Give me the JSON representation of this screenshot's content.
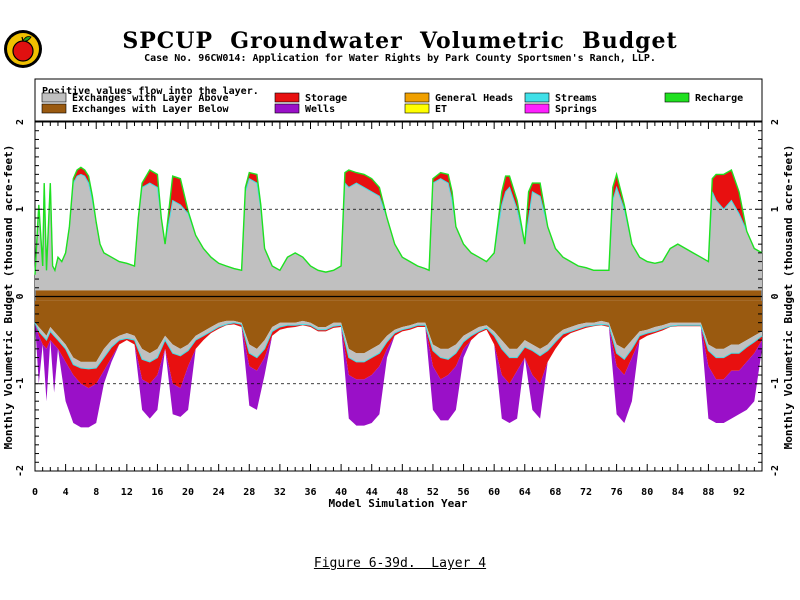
{
  "page": {
    "title": "SPCUP  Groundwater  Volumetric  Budget",
    "subtitle": "Case No. 96CW014: Application for Water Rights by Park County Sportsmen's Ranch, LLP.",
    "caption": "Figure 6-39d.  Layer 4"
  },
  "logo": {
    "icon": "apple-logo-icon",
    "colors": {
      "ring": "#f0c000",
      "apple": "#e01010",
      "leaf": "#20a020"
    }
  },
  "chart_data": {
    "type": "area",
    "title": "SPCUP  Groundwater  Volumetric  Budget",
    "subtitle": "Case No. 96CW014: Application for Water Rights by Park County Sportsmen's Ranch, LLP.",
    "xlabel": "Model Simulation Year",
    "ylabel": "Monthly Volumetric Budget (thousand acre-feet)",
    "xlim": [
      0,
      95
    ],
    "ylim": [
      -2,
      2
    ],
    "x_ticks_major": [
      0,
      4,
      8,
      12,
      16,
      20,
      24,
      28,
      32,
      36,
      40,
      44,
      48,
      52,
      56,
      60,
      64,
      68,
      72,
      76,
      80,
      84,
      88,
      92
    ],
    "x_tick_labels": [
      "0",
      "4",
      "8",
      "12",
      "16",
      "20",
      "24",
      "28",
      "32",
      "36",
      "40",
      "44",
      "48",
      "52",
      "56",
      "60",
      "64",
      "68",
      "72",
      "76",
      "80",
      "84",
      "88",
      "92"
    ],
    "y_ticks": [
      -2,
      -1,
      0,
      1,
      2
    ],
    "y_tick_labels": [
      "-2",
      "-1",
      "0",
      "1",
      "2"
    ],
    "gridlines_dashed": [
      1,
      -1
    ],
    "zero_line": true,
    "legend": {
      "note": "Positive values flow into the layer.",
      "placement": "top",
      "entries": [
        {
          "name": "Exchanges with Layer Above",
          "color": "#c0c0c0"
        },
        {
          "name": "Exchanges with Layer Below",
          "color": "#9a5a10"
        },
        {
          "name": "Storage",
          "color": "#e81010"
        },
        {
          "name": "Wells",
          "color": "#9a10c8"
        },
        {
          "name": "General Heads",
          "color": "#f0a000"
        },
        {
          "name": "ET",
          "color": "#ffff00"
        },
        {
          "name": "Streams",
          "color": "#40e0e8"
        },
        {
          "name": "Springs",
          "color": "#ff20ff"
        },
        {
          "name": "Recharge",
          "color": "#20e020"
        }
      ]
    },
    "positive_envelope": {
      "x": [
        0,
        0.5,
        1,
        1.2,
        1.5,
        2,
        2.3,
        2.6,
        3,
        3.5,
        4,
        4.5,
        5,
        5.5,
        6,
        6.5,
        7,
        7.5,
        8,
        8.5,
        9,
        10,
        11,
        12,
        13,
        13.5,
        14,
        15,
        16,
        16.5,
        17,
        18,
        19,
        20,
        21,
        22,
        23,
        24,
        25,
        26,
        27,
        27.5,
        28,
        29,
        29.5,
        30,
        31,
        32,
        33,
        34,
        35,
        36,
        37,
        38,
        39,
        40,
        40.5,
        41,
        42,
        43,
        44,
        45,
        46,
        47,
        48,
        49,
        50,
        51,
        51.5,
        52,
        53,
        54,
        54.5,
        55,
        56,
        57,
        58,
        59,
        60,
        61,
        61.5,
        62,
        63,
        64,
        64.5,
        65,
        66,
        67,
        68,
        69,
        70,
        71,
        72,
        73,
        74,
        75,
        75.5,
        76,
        77,
        78,
        79,
        80,
        81,
        82,
        83,
        84,
        85,
        86,
        87,
        88,
        88.5,
        89,
        90,
        91,
        92,
        93,
        94,
        95
      ],
      "exchange_above": [
        0.25,
        1.05,
        0.35,
        1.3,
        0.3,
        1.3,
        0.35,
        0.3,
        0.45,
        0.4,
        0.5,
        0.8,
        1.3,
        1.38,
        1.4,
        1.38,
        1.3,
        1.1,
        0.85,
        0.6,
        0.5,
        0.45,
        0.4,
        0.38,
        0.35,
        0.9,
        1.25,
        1.3,
        1.25,
        0.9,
        0.6,
        1.1,
        1.05,
        0.95,
        0.7,
        0.55,
        0.45,
        0.38,
        0.35,
        0.32,
        0.3,
        1.2,
        1.35,
        1.3,
        1.0,
        0.55,
        0.35,
        0.3,
        0.45,
        0.5,
        0.45,
        0.35,
        0.3,
        0.28,
        0.3,
        0.35,
        1.3,
        1.25,
        1.3,
        1.25,
        1.2,
        1.15,
        0.9,
        0.6,
        0.45,
        0.4,
        0.35,
        0.32,
        0.3,
        1.3,
        1.35,
        1.3,
        1.1,
        0.8,
        0.6,
        0.5,
        0.45,
        0.4,
        0.5,
        1.05,
        1.2,
        1.25,
        1.0,
        0.6,
        0.9,
        1.2,
        1.15,
        0.8,
        0.55,
        0.45,
        0.4,
        0.35,
        0.33,
        0.3,
        0.3,
        0.3,
        1.1,
        1.25,
        1.0,
        0.6,
        0.45,
        0.4,
        0.38,
        0.4,
        0.55,
        0.6,
        0.55,
        0.5,
        0.45,
        0.4,
        1.2,
        1.1,
        1.0,
        1.1,
        0.95,
        0.75,
        0.55,
        0.5
      ],
      "storage_top": [
        0.25,
        1.05,
        0.35,
        1.3,
        0.3,
        1.3,
        0.35,
        0.3,
        0.45,
        0.4,
        0.5,
        0.8,
        1.35,
        1.45,
        1.48,
        1.45,
        1.38,
        1.15,
        0.85,
        0.6,
        0.5,
        0.45,
        0.4,
        0.38,
        0.35,
        0.9,
        1.3,
        1.45,
        1.4,
        0.9,
        0.6,
        1.38,
        1.35,
        0.98,
        0.7,
        0.55,
        0.45,
        0.38,
        0.35,
        0.32,
        0.3,
        1.25,
        1.42,
        1.4,
        1.05,
        0.55,
        0.35,
        0.3,
        0.45,
        0.5,
        0.45,
        0.35,
        0.3,
        0.28,
        0.3,
        0.35,
        1.42,
        1.45,
        1.42,
        1.4,
        1.35,
        1.25,
        0.9,
        0.6,
        0.45,
        0.4,
        0.35,
        0.32,
        0.3,
        1.35,
        1.42,
        1.4,
        1.2,
        0.8,
        0.6,
        0.5,
        0.45,
        0.4,
        0.5,
        1.2,
        1.38,
        1.38,
        1.1,
        0.6,
        1.2,
        1.3,
        1.3,
        0.8,
        0.55,
        0.45,
        0.4,
        0.35,
        0.33,
        0.3,
        0.3,
        0.3,
        1.25,
        1.4,
        1.05,
        0.6,
        0.45,
        0.4,
        0.38,
        0.4,
        0.55,
        0.6,
        0.55,
        0.5,
        0.45,
        0.4,
        1.35,
        1.4,
        1.4,
        1.45,
        1.2,
        0.75,
        0.55,
        0.5
      ]
    },
    "layer_below_band": {
      "upper": 0.07,
      "lower": -0.05
    },
    "negative_envelope": {
      "x": [
        0,
        0.5,
        1,
        1.5,
        2,
        2.5,
        3,
        4,
        5,
        6,
        7,
        8,
        9,
        10,
        11,
        12,
        13,
        14,
        15,
        16,
        17,
        18,
        19,
        20,
        21,
        22,
        23,
        24,
        25,
        26,
        27,
        28,
        29,
        30,
        31,
        32,
        33,
        34,
        35,
        36,
        37,
        38,
        39,
        40,
        41,
        42,
        43,
        44,
        45,
        46,
        47,
        48,
        49,
        50,
        51,
        52,
        53,
        54,
        55,
        56,
        57,
        58,
        59,
        60,
        61,
        62,
        63,
        64,
        65,
        66,
        67,
        68,
        69,
        70,
        71,
        72,
        73,
        74,
        75,
        76,
        77,
        78,
        79,
        80,
        81,
        82,
        83,
        84,
        85,
        86,
        87,
        88,
        89,
        90,
        91,
        92,
        93,
        94,
        95
      ],
      "exchange_below": [
        -0.3,
        -0.35,
        -0.4,
        -0.45,
        -0.35,
        -0.4,
        -0.45,
        -0.55,
        -0.7,
        -0.75,
        -0.75,
        -0.75,
        -0.6,
        -0.5,
        -0.45,
        -0.42,
        -0.45,
        -0.6,
        -0.65,
        -0.6,
        -0.45,
        -0.55,
        -0.6,
        -0.55,
        -0.45,
        -0.4,
        -0.35,
        -0.3,
        -0.28,
        -0.28,
        -0.3,
        -0.55,
        -0.6,
        -0.5,
        -0.35,
        -0.3,
        -0.3,
        -0.3,
        -0.28,
        -0.3,
        -0.35,
        -0.35,
        -0.3,
        -0.3,
        -0.6,
        -0.65,
        -0.65,
        -0.6,
        -0.55,
        -0.45,
        -0.38,
        -0.35,
        -0.33,
        -0.3,
        -0.3,
        -0.55,
        -0.6,
        -0.6,
        -0.55,
        -0.45,
        -0.4,
        -0.35,
        -0.33,
        -0.4,
        -0.5,
        -0.6,
        -0.6,
        -0.5,
        -0.55,
        -0.6,
        -0.55,
        -0.45,
        -0.38,
        -0.35,
        -0.32,
        -0.3,
        -0.3,
        -0.28,
        -0.3,
        -0.55,
        -0.6,
        -0.5,
        -0.4,
        -0.38,
        -0.35,
        -0.33,
        -0.3,
        -0.3,
        -0.3,
        -0.3,
        -0.3,
        -0.55,
        -0.6,
        -0.6,
        -0.55,
        -0.55,
        -0.5,
        -0.45,
        -0.4
      ],
      "exchange_above": [
        -0.3,
        -0.4,
        -0.45,
        -0.5,
        -0.4,
        -0.45,
        -0.5,
        -0.6,
        -0.78,
        -0.82,
        -0.83,
        -0.82,
        -0.7,
        -0.58,
        -0.5,
        -0.48,
        -0.5,
        -0.72,
        -0.75,
        -0.7,
        -0.5,
        -0.65,
        -0.68,
        -0.62,
        -0.5,
        -0.45,
        -0.4,
        -0.35,
        -0.32,
        -0.3,
        -0.32,
        -0.65,
        -0.7,
        -0.6,
        -0.4,
        -0.35,
        -0.33,
        -0.33,
        -0.32,
        -0.33,
        -0.38,
        -0.38,
        -0.34,
        -0.33,
        -0.7,
        -0.75,
        -0.75,
        -0.7,
        -0.65,
        -0.52,
        -0.42,
        -0.38,
        -0.36,
        -0.33,
        -0.33,
        -0.62,
        -0.7,
        -0.72,
        -0.65,
        -0.52,
        -0.45,
        -0.4,
        -0.36,
        -0.45,
        -0.6,
        -0.7,
        -0.7,
        -0.58,
        -0.62,
        -0.68,
        -0.62,
        -0.52,
        -0.43,
        -0.4,
        -0.37,
        -0.34,
        -0.33,
        -0.32,
        -0.33,
        -0.65,
        -0.72,
        -0.6,
        -0.45,
        -0.42,
        -0.4,
        -0.37,
        -0.34,
        -0.33,
        -0.33,
        -0.33,
        -0.33,
        -0.62,
        -0.7,
        -0.7,
        -0.65,
        -0.65,
        -0.58,
        -0.52,
        -0.45
      ],
      "storage_bottom": [
        -0.3,
        -0.45,
        -0.55,
        -0.6,
        -0.5,
        -0.55,
        -0.6,
        -0.75,
        -0.9,
        -1.0,
        -1.05,
        -1.0,
        -0.85,
        -0.7,
        -0.55,
        -0.5,
        -0.55,
        -0.95,
        -1.0,
        -0.9,
        -0.6,
        -1.0,
        -1.05,
        -0.8,
        -0.6,
        -0.5,
        -0.42,
        -0.37,
        -0.33,
        -0.32,
        -0.35,
        -0.8,
        -0.85,
        -0.7,
        -0.45,
        -0.38,
        -0.36,
        -0.35,
        -0.33,
        -0.35,
        -0.4,
        -0.4,
        -0.36,
        -0.35,
        -0.9,
        -0.95,
        -0.95,
        -0.9,
        -0.8,
        -0.6,
        -0.45,
        -0.4,
        -0.38,
        -0.35,
        -0.35,
        -0.8,
        -0.95,
        -0.9,
        -0.8,
        -0.6,
        -0.5,
        -0.42,
        -0.38,
        -0.55,
        -0.9,
        -1.0,
        -0.85,
        -0.7,
        -0.9,
        -1.0,
        -0.75,
        -0.6,
        -0.48,
        -0.42,
        -0.39,
        -0.36,
        -0.34,
        -0.33,
        -0.35,
        -0.8,
        -0.9,
        -0.7,
        -0.5,
        -0.45,
        -0.42,
        -0.39,
        -0.35,
        -0.34,
        -0.34,
        -0.34,
        -0.34,
        -0.8,
        -0.95,
        -0.95,
        -0.85,
        -0.85,
        -0.75,
        -0.65,
        -0.5
      ],
      "wells_bottom": [
        -0.3,
        -1.0,
        -0.55,
        -1.2,
        -0.5,
        -1.1,
        -0.6,
        -1.2,
        -1.45,
        -1.5,
        -1.5,
        -1.45,
        -1.0,
        -0.75,
        -0.55,
        -0.5,
        -0.55,
        -1.3,
        -1.4,
        -1.3,
        -0.6,
        -1.35,
        -1.38,
        -1.3,
        -0.6,
        -0.5,
        -0.42,
        -0.37,
        -0.33,
        -0.32,
        -0.35,
        -1.25,
        -1.3,
        -0.9,
        -0.45,
        -0.38,
        -0.36,
        -0.35,
        -0.33,
        -0.35,
        -0.4,
        -0.4,
        -0.36,
        -0.35,
        -1.4,
        -1.48,
        -1.48,
        -1.45,
        -1.35,
        -0.7,
        -0.45,
        -0.4,
        -0.38,
        -0.35,
        -0.35,
        -1.3,
        -1.42,
        -1.42,
        -1.3,
        -0.7,
        -0.5,
        -0.42,
        -0.38,
        -0.55,
        -1.4,
        -1.45,
        -1.4,
        -0.7,
        -1.3,
        -1.4,
        -0.75,
        -0.6,
        -0.48,
        -0.42,
        -0.39,
        -0.36,
        -0.34,
        -0.33,
        -0.35,
        -1.35,
        -1.45,
        -1.2,
        -0.5,
        -0.45,
        -0.42,
        -0.39,
        -0.35,
        -0.34,
        -0.34,
        -0.34,
        -0.34,
        -1.4,
        -1.45,
        -1.45,
        -1.4,
        -1.35,
        -1.3,
        -1.2,
        -0.6
      ]
    }
  }
}
